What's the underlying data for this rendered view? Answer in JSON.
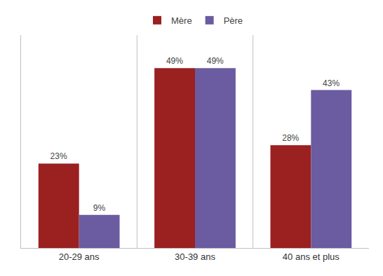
{
  "chart_data": {
    "type": "bar",
    "categories": [
      "20-29 ans",
      "30-39 ans",
      "40 ans et plus"
    ],
    "series": [
      {
        "name": "Mère",
        "color": "#9B2020",
        "values": [
          23,
          49,
          28
        ],
        "value_labels": [
          "23%",
          "49%",
          "28%"
        ]
      },
      {
        "name": "Père",
        "color": "#6B5BA0",
        "values": [
          9,
          49,
          43
        ],
        "value_labels": [
          "9%",
          "49%",
          "43%"
        ]
      }
    ],
    "ylim": [
      0,
      58
    ],
    "yticks": [],
    "grid": false,
    "legend": "top",
    "data_labels": true,
    "tick_labels": "x"
  }
}
